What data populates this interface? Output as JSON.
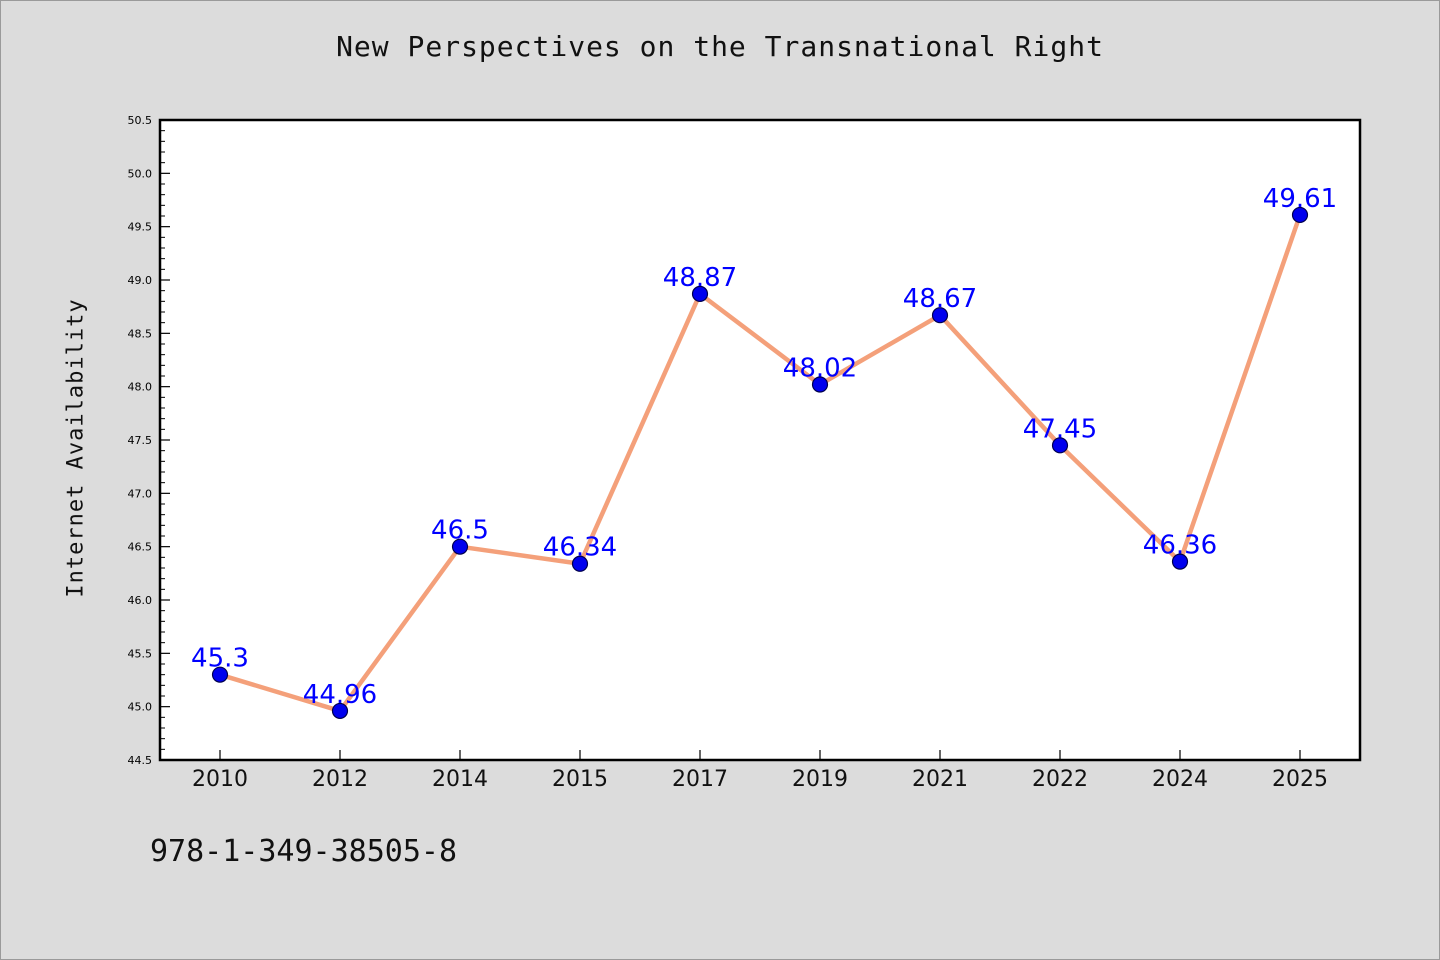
{
  "isbn": "978-1-349-38505-8",
  "chart_data": {
    "type": "line",
    "title": "New Perspectives on the Transnational Right",
    "xlabel": "",
    "ylabel": "Internet Availability",
    "categories": [
      "2010",
      "2012",
      "2014",
      "2015",
      "2017",
      "2019",
      "2021",
      "2022",
      "2024",
      "2025"
    ],
    "series": [
      {
        "values": [
          45.3,
          44.96,
          46.5,
          46.34,
          48.87,
          48.02,
          48.67,
          47.45,
          46.36,
          49.61
        ],
        "labels": [
          "45.3",
          "44.96",
          "46.5",
          "46.34",
          "48.87",
          "48.02",
          "48.67",
          "47.45",
          "46.36",
          "49.61"
        ]
      }
    ],
    "ylim": [
      44.5,
      50.5
    ],
    "yticks": [
      "44.5",
      "45.0",
      "45.5",
      "46.0",
      "46.5",
      "47.0",
      "47.5",
      "48.0",
      "48.5",
      "49.0",
      "49.5",
      "50.0",
      "50.5"
    ],
    "grid": false,
    "colors": {
      "line": "#f4a07a",
      "marker": "#0000ee",
      "marker_edge": "#00004d",
      "label": "#0000ff",
      "axis": "#000000",
      "plot_bg": "#ffffff",
      "page_bg": "#dcdcdc"
    }
  }
}
